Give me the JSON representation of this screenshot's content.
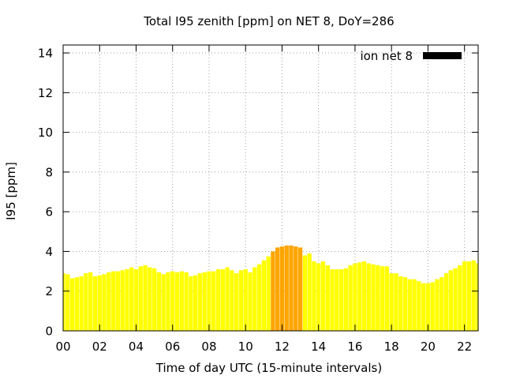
{
  "chart_data": {
    "type": "bar",
    "title": "Total I95 zenith [ppm] on NET 8, DoY=286",
    "xlabel": "Time of day UTC (15-minute intervals)",
    "ylabel": "I95 [ppm]",
    "xlim": [
      0,
      22.75
    ],
    "ylim": [
      0,
      14.4
    ],
    "x_ticks": [
      "00",
      "02",
      "04",
      "06",
      "08",
      "10",
      "12",
      "14",
      "16",
      "18",
      "20",
      "22"
    ],
    "y_ticks": [
      "0",
      "2",
      "4",
      "6",
      "8",
      "10",
      "12",
      "14"
    ],
    "grid": true,
    "legend": {
      "placement": "top-right",
      "entries": [
        {
          "label": "ion net 8",
          "color": "#000000"
        }
      ]
    },
    "colors": {
      "normal": "#ffff00",
      "elevated": "#ffa500",
      "legend_swatch": "#000000"
    },
    "bar_width_hours": 0.23,
    "x_start_hour": 0,
    "x_step_hours": 0.25,
    "elevated_threshold": 4,
    "series": [
      {
        "name": "ion net 8",
        "values": [
          2.9,
          2.85,
          2.65,
          2.7,
          2.75,
          2.9,
          2.95,
          2.75,
          2.8,
          2.85,
          2.95,
          3.0,
          3.0,
          3.05,
          3.1,
          3.2,
          3.1,
          3.25,
          3.3,
          3.2,
          3.15,
          2.95,
          2.85,
          2.95,
          3.0,
          2.95,
          3.0,
          2.95,
          2.75,
          2.8,
          2.9,
          2.95,
          3.0,
          3.0,
          3.1,
          3.1,
          3.2,
          3.05,
          2.9,
          3.05,
          3.1,
          2.95,
          3.2,
          3.35,
          3.55,
          3.75,
          4.0,
          4.2,
          4.25,
          4.3,
          4.3,
          4.25,
          4.2,
          3.8,
          3.9,
          3.5,
          3.4,
          3.5,
          3.3,
          3.1,
          3.1,
          3.1,
          3.15,
          3.3,
          3.4,
          3.45,
          3.5,
          3.4,
          3.35,
          3.3,
          3.25,
          3.25,
          2.9,
          2.9,
          2.75,
          2.7,
          2.6,
          2.6,
          2.5,
          2.4,
          2.4,
          2.45,
          2.6,
          2.7,
          2.9,
          3.05,
          3.15,
          3.3,
          3.5,
          3.5,
          3.55,
          3.4
        ]
      }
    ]
  }
}
